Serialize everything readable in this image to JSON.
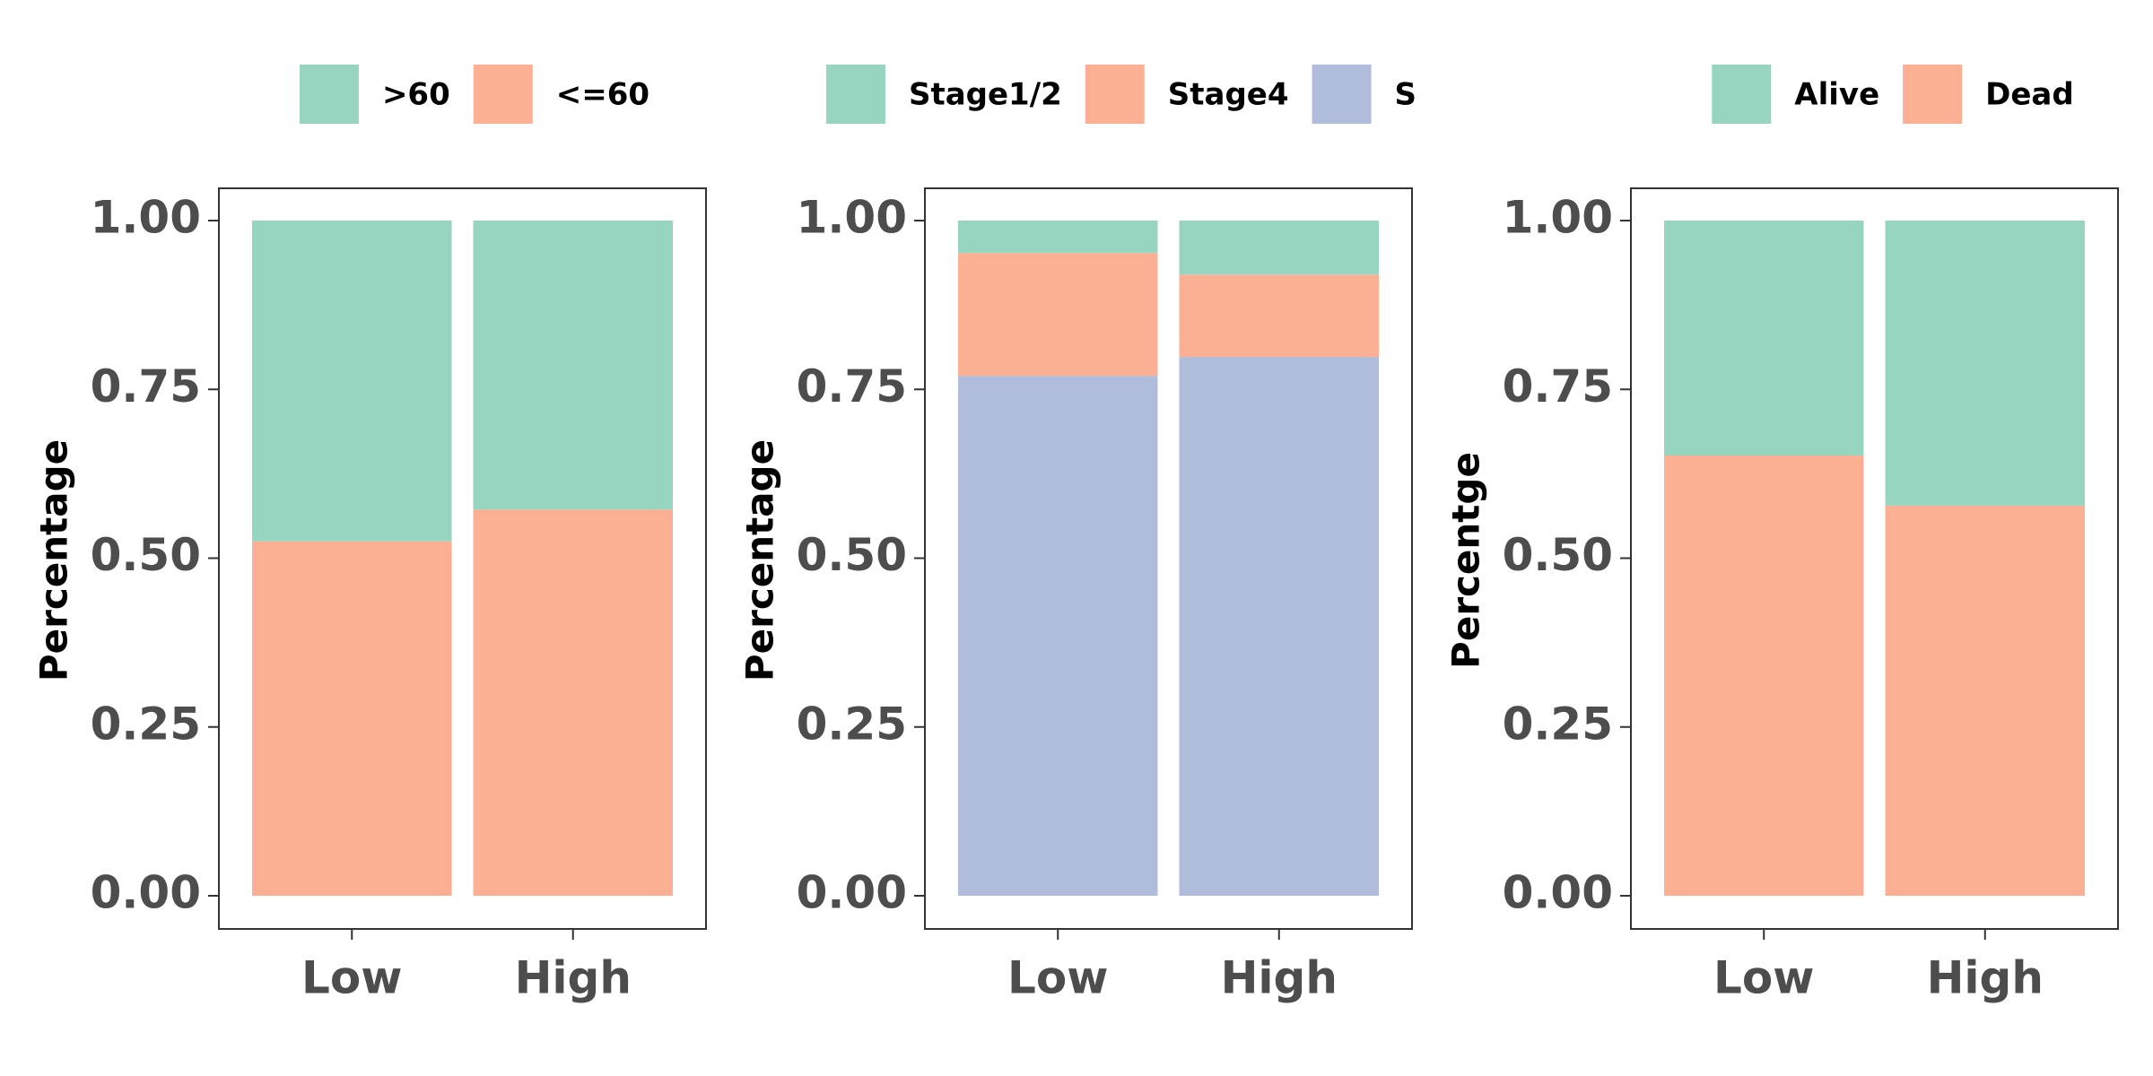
{
  "chart_data": [
    {
      "type": "bar",
      "stacked": true,
      "normalized": true,
      "categories": [
        "Low",
        "High"
      ],
      "series": [
        {
          "name": "<=60",
          "values": [
            0.525,
            0.572
          ],
          "color": "#FCB093"
        },
        {
          "name": ">60",
          "values": [
            0.475,
            0.428
          ],
          "color": "#97D5C1"
        }
      ],
      "legend": [
        {
          "label": ">60",
          "color": "#97D5C1"
        },
        {
          "label": "<=60",
          "color": "#FCB093"
        }
      ],
      "legend_position": "top",
      "ylabel": "Percentage",
      "ylim": [
        0,
        1
      ],
      "yticks": [
        "0.00",
        "0.25",
        "0.50",
        "0.75",
        "1.00"
      ],
      "grid": false
    },
    {
      "type": "bar",
      "stacked": true,
      "normalized": true,
      "categories": [
        "Low",
        "High"
      ],
      "series": [
        {
          "name": "S",
          "values": [
            0.77,
            0.798
          ],
          "color": "#AFBDDA"
        },
        {
          "name": "Stage4",
          "values": [
            0.182,
            0.122
          ],
          "color": "#FCB093"
        },
        {
          "name": "Stage1/2",
          "values": [
            0.048,
            0.08
          ],
          "color": "#97D5C1"
        }
      ],
      "legend": [
        {
          "label": "Stage1/2",
          "color": "#97D5C1"
        },
        {
          "label": "Stage4",
          "color": "#FCB093"
        },
        {
          "label": "S",
          "color": "#AFBDDA"
        }
      ],
      "legend_position": "top",
      "ylabel": "Percentage",
      "ylim": [
        0,
        1
      ],
      "yticks": [
        "0.00",
        "0.25",
        "0.50",
        "0.75",
        "1.00"
      ],
      "grid": false
    },
    {
      "type": "bar",
      "stacked": true,
      "normalized": true,
      "categories": [
        "Low",
        "High"
      ],
      "series": [
        {
          "name": "Dead",
          "values": [
            0.652,
            0.578
          ],
          "color": "#FCB093"
        },
        {
          "name": "Alive",
          "values": [
            0.348,
            0.422
          ],
          "color": "#97D5C1"
        }
      ],
      "legend": [
        {
          "label": "Alive",
          "color": "#97D5C1"
        },
        {
          "label": "Dead",
          "color": "#FCB093"
        }
      ],
      "legend_position": "top",
      "ylabel": "Percentge",
      "ylim": [
        0,
        1
      ],
      "yticks": [
        "0.00",
        "0.25",
        "0.50",
        "0.75",
        "1.00"
      ],
      "grid": false
    }
  ]
}
